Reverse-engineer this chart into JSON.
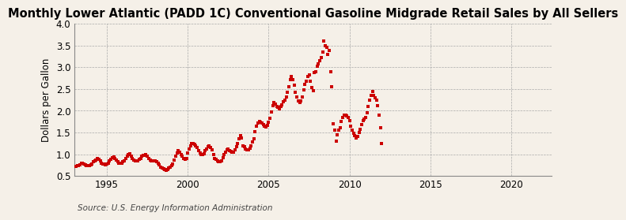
{
  "title": "Monthly Lower Atlantic (PADD 1C) Conventional Gasoline Midgrade Retail Sales by All Sellers",
  "ylabel": "Dollars per Gallon",
  "source": "Source: U.S. Energy Information Administration",
  "xlim": [
    1993.0,
    2022.5
  ],
  "ylim": [
    0.5,
    4.0
  ],
  "yticks": [
    0.5,
    1.0,
    1.5,
    2.0,
    2.5,
    3.0,
    3.5,
    4.0
  ],
  "xticks": [
    1995,
    2000,
    2005,
    2010,
    2015,
    2020
  ],
  "marker_color": "#cc0000",
  "bg_color": "#f5f0e8",
  "grid_color": "#aaaaaa",
  "title_fontsize": 10.5,
  "label_fontsize": 8.5,
  "source_fontsize": 7.5,
  "data": {
    "dates": [
      1993.083,
      1993.167,
      1993.25,
      1993.333,
      1993.417,
      1993.5,
      1993.583,
      1993.667,
      1993.75,
      1993.833,
      1993.917,
      1994.0,
      1994.083,
      1994.167,
      1994.25,
      1994.333,
      1994.417,
      1994.5,
      1994.583,
      1994.667,
      1994.75,
      1994.833,
      1994.917,
      1995.0,
      1995.083,
      1995.167,
      1995.25,
      1995.333,
      1995.417,
      1995.5,
      1995.583,
      1995.667,
      1995.75,
      1995.833,
      1995.917,
      1996.0,
      1996.083,
      1996.167,
      1996.25,
      1996.333,
      1996.417,
      1996.5,
      1996.583,
      1996.667,
      1996.75,
      1996.833,
      1996.917,
      1997.0,
      1997.083,
      1997.167,
      1997.25,
      1997.333,
      1997.417,
      1997.5,
      1997.583,
      1997.667,
      1997.75,
      1997.833,
      1997.917,
      1998.0,
      1998.083,
      1998.167,
      1998.25,
      1998.333,
      1998.417,
      1998.5,
      1998.583,
      1998.667,
      1998.75,
      1998.833,
      1998.917,
      1999.0,
      1999.083,
      1999.167,
      1999.25,
      1999.333,
      1999.417,
      1999.5,
      1999.583,
      1999.667,
      1999.75,
      1999.833,
      1999.917,
      2000.0,
      2000.083,
      2000.167,
      2000.25,
      2000.333,
      2000.417,
      2000.5,
      2000.583,
      2000.667,
      2000.75,
      2000.833,
      2000.917,
      2001.0,
      2001.083,
      2001.167,
      2001.25,
      2001.333,
      2001.417,
      2001.5,
      2001.583,
      2001.667,
      2001.75,
      2001.833,
      2001.917,
      2002.0,
      2002.083,
      2002.167,
      2002.25,
      2002.333,
      2002.417,
      2002.5,
      2002.583,
      2002.667,
      2002.75,
      2002.833,
      2002.917,
      2003.0,
      2003.083,
      2003.167,
      2003.25,
      2003.333,
      2003.417,
      2003.5,
      2003.583,
      2003.667,
      2003.75,
      2003.833,
      2003.917,
      2004.0,
      2004.083,
      2004.167,
      2004.25,
      2004.333,
      2004.417,
      2004.5,
      2004.583,
      2004.667,
      2004.75,
      2004.833,
      2004.917,
      2005.0,
      2005.083,
      2005.167,
      2005.25,
      2005.333,
      2005.417,
      2005.5,
      2005.583,
      2005.667,
      2005.75,
      2005.833,
      2005.917,
      2006.0,
      2006.083,
      2006.167,
      2006.25,
      2006.333,
      2006.417,
      2006.5,
      2006.583,
      2006.667,
      2006.75,
      2006.833,
      2006.917,
      2007.0,
      2007.083,
      2007.167,
      2007.25,
      2007.333,
      2007.417,
      2007.5,
      2007.583,
      2007.667,
      2007.75,
      2007.833,
      2007.917,
      2008.0,
      2008.083,
      2008.167,
      2008.25,
      2008.333,
      2008.417,
      2008.5,
      2008.583,
      2008.667,
      2008.75,
      2008.833,
      2008.917,
      2009.0,
      2009.083,
      2009.167,
      2009.25,
      2009.333,
      2009.417,
      2009.5,
      2009.583,
      2009.667,
      2009.75,
      2009.833,
      2009.917,
      2010.0,
      2010.083,
      2010.167,
      2010.25,
      2010.333,
      2010.417,
      2010.5,
      2010.583,
      2010.667,
      2010.75,
      2010.833,
      2010.917,
      2011.0,
      2011.083,
      2011.167,
      2011.25,
      2011.333,
      2011.417,
      2011.5,
      2011.583,
      2011.667,
      2011.75,
      2011.833,
      2011.917,
      2012.0
    ],
    "values": [
      0.72,
      0.73,
      0.74,
      0.76,
      0.8,
      0.79,
      0.77,
      0.76,
      0.74,
      0.73,
      0.73,
      0.76,
      0.78,
      0.82,
      0.85,
      0.87,
      0.9,
      0.88,
      0.84,
      0.8,
      0.78,
      0.77,
      0.76,
      0.78,
      0.8,
      0.84,
      0.88,
      0.92,
      0.94,
      0.9,
      0.86,
      0.83,
      0.8,
      0.79,
      0.79,
      0.82,
      0.84,
      0.9,
      0.96,
      0.99,
      1.01,
      0.96,
      0.91,
      0.87,
      0.85,
      0.84,
      0.85,
      0.88,
      0.91,
      0.95,
      0.97,
      0.98,
      1.0,
      0.96,
      0.91,
      0.87,
      0.85,
      0.85,
      0.84,
      0.84,
      0.83,
      0.8,
      0.75,
      0.7,
      0.68,
      0.66,
      0.64,
      0.63,
      0.64,
      0.68,
      0.71,
      0.73,
      0.78,
      0.87,
      0.95,
      1.02,
      1.08,
      1.05,
      1.0,
      0.95,
      0.9,
      0.88,
      0.91,
      1.02,
      1.12,
      1.19,
      1.24,
      1.24,
      1.22,
      1.2,
      1.15,
      1.08,
      1.02,
      0.99,
      0.99,
      1.01,
      1.08,
      1.12,
      1.18,
      1.19,
      1.16,
      1.1,
      1.0,
      0.9,
      0.88,
      0.84,
      0.82,
      0.82,
      0.85,
      0.92,
      1.0,
      1.05,
      1.1,
      1.12,
      1.09,
      1.06,
      1.05,
      1.05,
      1.1,
      1.18,
      1.25,
      1.35,
      1.43,
      1.38,
      1.2,
      1.18,
      1.12,
      1.1,
      1.1,
      1.14,
      1.2,
      1.28,
      1.36,
      1.52,
      1.65,
      1.72,
      1.75,
      1.74,
      1.72,
      1.68,
      1.64,
      1.62,
      1.66,
      1.74,
      1.82,
      1.98,
      2.12,
      2.18,
      2.15,
      2.1,
      2.08,
      2.04,
      2.1,
      2.14,
      2.2,
      2.25,
      2.32,
      2.42,
      2.56,
      2.72,
      2.78,
      2.72,
      2.58,
      2.42,
      2.32,
      2.22,
      2.18,
      2.22,
      2.32,
      2.48,
      2.6,
      2.68,
      2.78,
      2.82,
      2.68,
      2.54,
      2.46,
      2.88,
      2.9,
      3.02,
      3.08,
      3.15,
      3.22,
      3.35,
      3.6,
      3.5,
      3.45,
      3.3,
      3.38,
      2.9,
      2.55,
      1.7,
      1.55,
      1.3,
      1.45,
      1.55,
      1.6,
      1.75,
      1.85,
      1.9,
      1.9,
      1.88,
      1.85,
      1.78,
      1.65,
      1.55,
      1.48,
      1.42,
      1.38,
      1.4,
      1.5,
      1.58,
      1.68,
      1.78,
      1.8,
      1.85,
      1.95,
      2.1,
      2.25,
      2.35,
      2.45,
      2.35,
      2.3,
      2.25,
      2.12,
      1.9,
      1.6,
      1.25
    ]
  }
}
